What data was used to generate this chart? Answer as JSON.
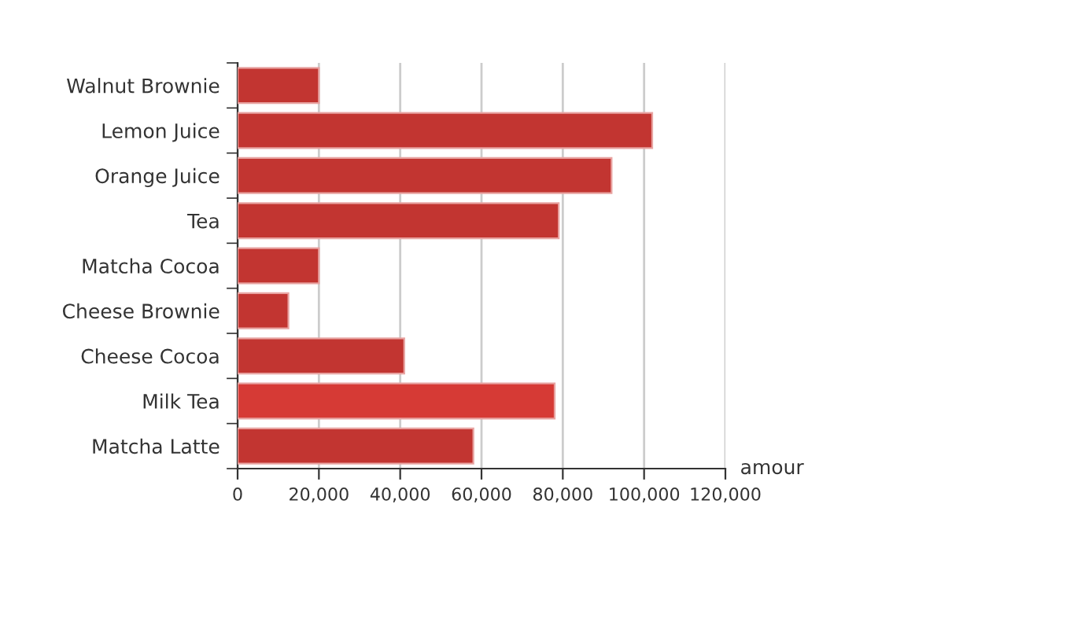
{
  "chart_data": {
    "type": "bar",
    "orientation": "horizontal",
    "xlabel": "amour",
    "categories": [
      "Walnut Brownie",
      "Lemon Juice",
      "Orange Juice",
      "Tea",
      "Matcha Cocoa",
      "Cheese Brownie",
      "Cheese Cocoa",
      "Milk Tea",
      "Matcha Latte"
    ],
    "values": [
      20000,
      102000,
      92000,
      79000,
      20000,
      12500,
      41000,
      78000,
      58000
    ],
    "colors": [
      "#c23531",
      "#c23531",
      "#c23531",
      "#c23531",
      "#c23531",
      "#c23531",
      "#c23531",
      "#d63a35",
      "#c23531"
    ],
    "xlim": [
      0,
      120000
    ],
    "xticks": [
      {
        "value": 0,
        "label": "0"
      },
      {
        "value": 20000,
        "label": "20,000"
      },
      {
        "value": 40000,
        "label": "40,000"
      },
      {
        "value": 60000,
        "label": "60,000"
      },
      {
        "value": 80000,
        "label": "80,000"
      },
      {
        "value": 100000,
        "label": "100,000"
      },
      {
        "value": 120000,
        "label": "120,000"
      }
    ],
    "grid": "x"
  }
}
